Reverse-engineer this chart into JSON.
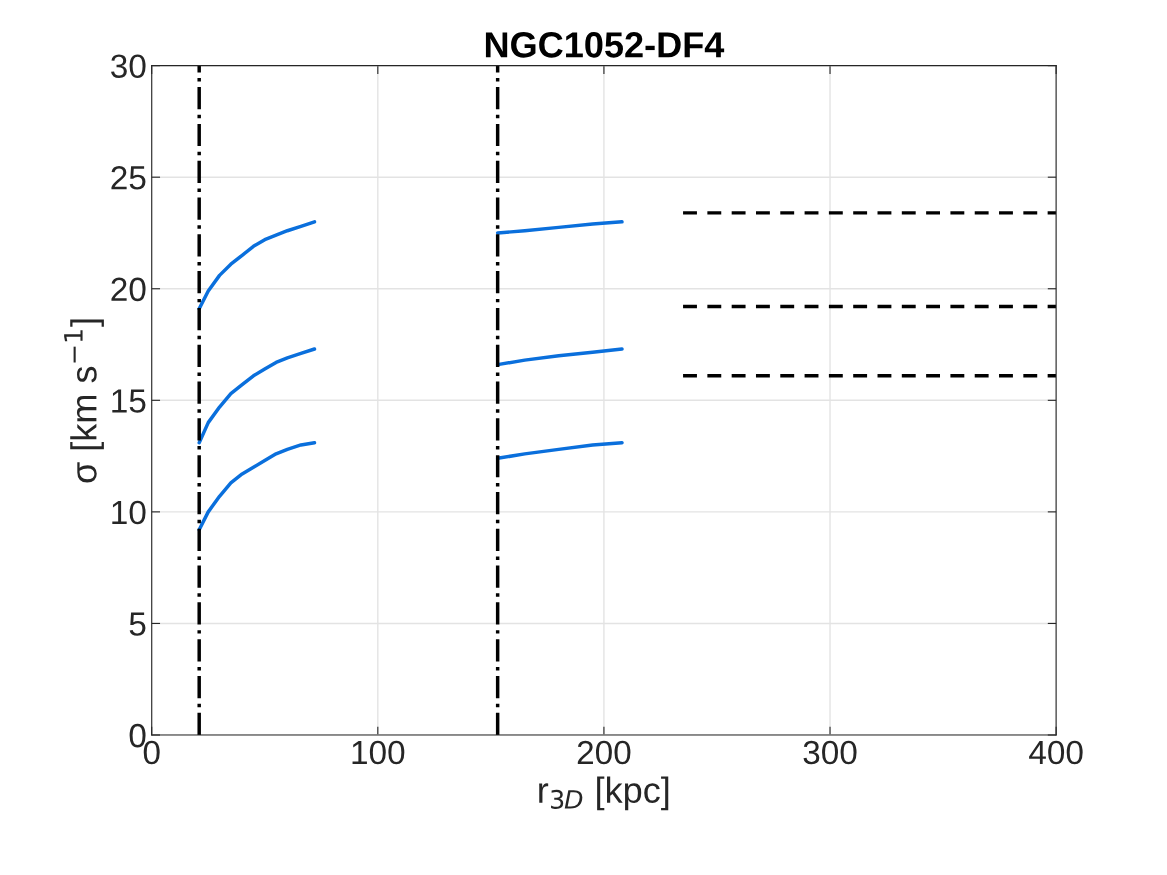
{
  "chart_data": {
    "type": "line",
    "title": "NGC1052-DF4",
    "xlabel": "r$_{3D}$ [kpc]",
    "ylabel": "σ [km s$^{−1}$]",
    "xlim": [
      0,
      400
    ],
    "xticks": [
      0,
      100,
      200,
      300,
      400
    ],
    "ylim": [
      0,
      30
    ],
    "yticks": [
      0,
      5,
      10,
      15,
      20,
      25,
      30
    ],
    "grid": true,
    "series": [
      {
        "color": "#0a6fdc",
        "x": [
          21,
          25,
          30,
          35,
          40,
          45,
          50,
          55,
          60,
          66,
          72
        ],
        "values": [
          19.1,
          19.9,
          20.6,
          21.1,
          21.5,
          21.9,
          22.2,
          22.4,
          22.6,
          22.8,
          23.0
        ]
      },
      {
        "color": "#0a6fdc",
        "x": [
          21,
          25,
          30,
          35,
          40,
          45,
          50,
          55,
          60,
          66,
          72
        ],
        "values": [
          13.1,
          14.0,
          14.7,
          15.3,
          15.7,
          16.1,
          16.4,
          16.7,
          16.9,
          17.1,
          17.3
        ]
      },
      {
        "color": "#0a6fdc",
        "x": [
          21,
          25,
          30,
          35,
          40,
          45,
          50,
          55,
          60,
          66,
          72
        ],
        "values": [
          9.2,
          10.0,
          10.7,
          11.3,
          11.7,
          12.0,
          12.3,
          12.6,
          12.8,
          13.0,
          13.1
        ]
      },
      {
        "color": "#0a6fdc",
        "x": [
          153,
          165,
          180,
          195,
          208
        ],
        "values": [
          22.5,
          22.6,
          22.75,
          22.9,
          23.0
        ]
      },
      {
        "color": "#0a6fdc",
        "x": [
          153,
          165,
          180,
          195,
          208
        ],
        "values": [
          16.6,
          16.8,
          17.0,
          17.15,
          17.3
        ]
      },
      {
        "color": "#0a6fdc",
        "x": [
          153,
          165,
          180,
          195,
          208
        ],
        "values": [
          12.4,
          12.6,
          12.8,
          13.0,
          13.1
        ]
      },
      {
        "color": "#000000",
        "line_style": "dashed",
        "x": [
          235,
          400
        ],
        "values": [
          23.4,
          23.4
        ]
      },
      {
        "color": "#000000",
        "line_style": "dashed",
        "x": [
          235,
          400
        ],
        "values": [
          19.2,
          19.2
        ]
      },
      {
        "color": "#000000",
        "line_style": "dashed",
        "x": [
          235,
          400
        ],
        "values": [
          16.1,
          16.1
        ]
      }
    ],
    "ref_lines": [
      {
        "axis": "x",
        "value": 21,
        "color": "#000000",
        "line_style": "dashdot"
      },
      {
        "axis": "x",
        "value": 153,
        "color": "#000000",
        "line_style": "dashdot"
      }
    ]
  }
}
